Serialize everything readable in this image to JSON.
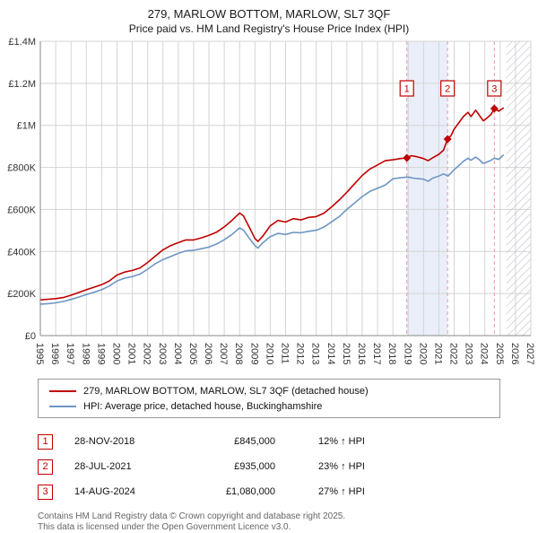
{
  "chart_data": {
    "type": "line",
    "title": "279, MARLOW BOTTOM, MARLOW, SL7 3QF",
    "subtitle": "Price paid vs. HM Land Registry's House Price Index (HPI)",
    "x_range": [
      1995,
      2027
    ],
    "y_range": [
      0,
      1400000
    ],
    "grid": true,
    "legend_position": "bottom",
    "x_ticks": [
      1995,
      1996,
      1997,
      1998,
      1999,
      2000,
      2001,
      2002,
      2003,
      2004,
      2005,
      2006,
      2007,
      2008,
      2009,
      2010,
      2011,
      2012,
      2013,
      2014,
      2015,
      2016,
      2017,
      2018,
      2019,
      2020,
      2021,
      2022,
      2023,
      2024,
      2025,
      2026,
      2027
    ],
    "y_ticks": [
      {
        "value": 0,
        "label": "£0"
      },
      {
        "value": 200000,
        "label": "£200K"
      },
      {
        "value": 400000,
        "label": "£400K"
      },
      {
        "value": 600000,
        "label": "£600K"
      },
      {
        "value": 800000,
        "label": "£800K"
      },
      {
        "value": 1000000,
        "label": "£1M"
      },
      {
        "value": 1200000,
        "label": "£1.2M"
      },
      {
        "value": 1400000,
        "label": "£1.4M"
      }
    ],
    "future_hatch_start": 2025.4,
    "highlight_band": {
      "x1": 2018.91,
      "x2": 2021.57,
      "color": "#e9eef8"
    },
    "grid_color": "#d4d4d4",
    "axis_color": "#888888",
    "hatch_color": "#c8c8d2",
    "dashed_line_color": "#e79aa2",
    "marker_color": "#c00000",
    "sale_markers": [
      {
        "label": "1",
        "x": 2018.91,
        "y": 845000
      },
      {
        "label": "2",
        "x": 2021.57,
        "y": 935000
      },
      {
        "label": "3",
        "x": 2024.62,
        "y": 1080000
      }
    ],
    "series": [
      {
        "name": "279, MARLOW BOTTOM, MARLOW, SL7 3QF (detached house)",
        "color": "#c00000",
        "points": [
          [
            1995.0,
            170000
          ],
          [
            1995.5,
            173000
          ],
          [
            1996.0,
            176000
          ],
          [
            1996.5,
            181000
          ],
          [
            1997.0,
            192000
          ],
          [
            1997.5,
            205000
          ],
          [
            1998.0,
            218000
          ],
          [
            1998.5,
            230000
          ],
          [
            1999.0,
            242000
          ],
          [
            1999.5,
            260000
          ],
          [
            2000.0,
            288000
          ],
          [
            2000.5,
            302000
          ],
          [
            2001.0,
            310000
          ],
          [
            2001.5,
            322000
          ],
          [
            2002.0,
            348000
          ],
          [
            2002.5,
            378000
          ],
          [
            2003.0,
            408000
          ],
          [
            2003.5,
            428000
          ],
          [
            2004.0,
            442000
          ],
          [
            2004.5,
            455000
          ],
          [
            2005.0,
            455000
          ],
          [
            2005.5,
            465000
          ],
          [
            2006.0,
            477000
          ],
          [
            2006.5,
            492000
          ],
          [
            2007.0,
            517000
          ],
          [
            2007.5,
            548000
          ],
          [
            2008.0,
            583000
          ],
          [
            2008.25,
            570000
          ],
          [
            2008.6,
            520000
          ],
          [
            2009.0,
            462000
          ],
          [
            2009.2,
            448000
          ],
          [
            2009.5,
            472000
          ],
          [
            2010.0,
            522000
          ],
          [
            2010.5,
            548000
          ],
          [
            2011.0,
            540000
          ],
          [
            2011.5,
            556000
          ],
          [
            2012.0,
            550000
          ],
          [
            2012.5,
            562000
          ],
          [
            2013.0,
            566000
          ],
          [
            2013.5,
            582000
          ],
          [
            2014.0,
            612000
          ],
          [
            2014.5,
            645000
          ],
          [
            2015.0,
            682000
          ],
          [
            2015.5,
            722000
          ],
          [
            2016.0,
            762000
          ],
          [
            2016.5,
            792000
          ],
          [
            2017.0,
            812000
          ],
          [
            2017.5,
            832000
          ],
          [
            2018.0,
            836000
          ],
          [
            2018.5,
            842000
          ],
          [
            2018.91,
            845000
          ],
          [
            2019.2,
            856000
          ],
          [
            2019.5,
            852000
          ],
          [
            2020.0,
            842000
          ],
          [
            2020.3,
            832000
          ],
          [
            2020.6,
            846000
          ],
          [
            2021.0,
            862000
          ],
          [
            2021.3,
            882000
          ],
          [
            2021.57,
            935000
          ],
          [
            2021.8,
            952000
          ],
          [
            2022.0,
            982000
          ],
          [
            2022.3,
            1012000
          ],
          [
            2022.6,
            1042000
          ],
          [
            2022.9,
            1062000
          ],
          [
            2023.1,
            1042000
          ],
          [
            2023.4,
            1072000
          ],
          [
            2023.6,
            1052000
          ],
          [
            2023.9,
            1022000
          ],
          [
            2024.1,
            1032000
          ],
          [
            2024.4,
            1052000
          ],
          [
            2024.62,
            1080000
          ],
          [
            2024.9,
            1068000
          ],
          [
            2025.2,
            1082000
          ]
        ]
      },
      {
        "name": "HPI: Average price, detached house, Buckinghamshire",
        "color": "#6e96c3",
        "points": [
          [
            1995.0,
            150000
          ],
          [
            1995.5,
            152000
          ],
          [
            1996.0,
            156000
          ],
          [
            1996.5,
            162000
          ],
          [
            1997.0,
            172000
          ],
          [
            1997.5,
            183000
          ],
          [
            1998.0,
            195000
          ],
          [
            1998.5,
            206000
          ],
          [
            1999.0,
            218000
          ],
          [
            1999.5,
            236000
          ],
          [
            2000.0,
            260000
          ],
          [
            2000.5,
            273000
          ],
          [
            2001.0,
            281000
          ],
          [
            2001.5,
            293000
          ],
          [
            2002.0,
            316000
          ],
          [
            2002.5,
            342000
          ],
          [
            2003.0,
            362000
          ],
          [
            2003.5,
            376000
          ],
          [
            2004.0,
            391000
          ],
          [
            2004.5,
            403000
          ],
          [
            2005.0,
            406000
          ],
          [
            2005.5,
            413000
          ],
          [
            2006.0,
            421000
          ],
          [
            2006.5,
            436000
          ],
          [
            2007.0,
            456000
          ],
          [
            2007.5,
            481000
          ],
          [
            2008.0,
            512000
          ],
          [
            2008.25,
            502000
          ],
          [
            2008.6,
            466000
          ],
          [
            2009.0,
            428000
          ],
          [
            2009.2,
            416000
          ],
          [
            2009.5,
            441000
          ],
          [
            2010.0,
            471000
          ],
          [
            2010.5,
            486000
          ],
          [
            2011.0,
            481000
          ],
          [
            2011.5,
            491000
          ],
          [
            2012.0,
            489000
          ],
          [
            2012.5,
            496000
          ],
          [
            2013.0,
            501000
          ],
          [
            2013.5,
            516000
          ],
          [
            2014.0,
            541000
          ],
          [
            2014.5,
            566000
          ],
          [
            2015.0,
            601000
          ],
          [
            2015.5,
            631000
          ],
          [
            2016.0,
            661000
          ],
          [
            2016.5,
            686000
          ],
          [
            2017.0,
            701000
          ],
          [
            2017.5,
            716000
          ],
          [
            2018.0,
            746000
          ],
          [
            2018.5,
            751000
          ],
          [
            2019.0,
            754000
          ],
          [
            2019.3,
            749000
          ],
          [
            2019.6,
            747000
          ],
          [
            2020.0,
            744000
          ],
          [
            2020.3,
            734000
          ],
          [
            2020.6,
            749000
          ],
          [
            2021.0,
            759000
          ],
          [
            2021.3,
            769000
          ],
          [
            2021.6,
            759000
          ],
          [
            2021.8,
            774000
          ],
          [
            2022.0,
            789000
          ],
          [
            2022.3,
            809000
          ],
          [
            2022.6,
            829000
          ],
          [
            2022.9,
            844000
          ],
          [
            2023.1,
            834000
          ],
          [
            2023.4,
            849000
          ],
          [
            2023.6,
            839000
          ],
          [
            2023.9,
            819000
          ],
          [
            2024.1,
            824000
          ],
          [
            2024.4,
            834000
          ],
          [
            2024.62,
            844000
          ],
          [
            2024.9,
            838000
          ],
          [
            2025.2,
            858000
          ]
        ]
      }
    ]
  },
  "legend": {
    "items": [
      {
        "label": "279, MARLOW BOTTOM, MARLOW, SL7 3QF (detached house)",
        "color": "#c00000"
      },
      {
        "label": "HPI: Average price, detached house, Buckinghamshire",
        "color": "#6e96c3"
      }
    ]
  },
  "transactions": [
    {
      "num": "1",
      "date": "28-NOV-2018",
      "price": "£845,000",
      "hpi": "12% ↑ HPI"
    },
    {
      "num": "2",
      "date": "28-JUL-2021",
      "price": "£935,000",
      "hpi": "23% ↑ HPI"
    },
    {
      "num": "3",
      "date": "14-AUG-2024",
      "price": "£1,080,000",
      "hpi": "27% ↑ HPI"
    }
  ],
  "footer": {
    "line1": "Contains HM Land Registry data © Crown copyright and database right 2025.",
    "line2": "This data is licensed under the Open Government Licence v3.0."
  }
}
